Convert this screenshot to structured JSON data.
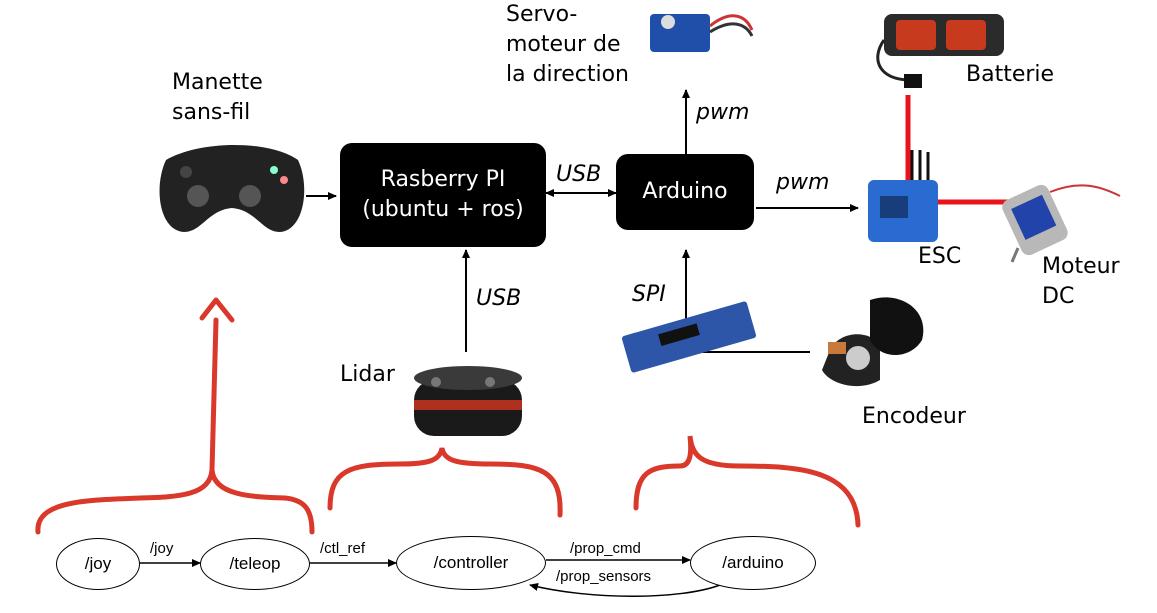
{
  "hardware": {
    "rpi_line1": "Rasberry PI",
    "rpi_line2": "(ubuntu + ros)",
    "arduino": "Arduino",
    "manette": "Manette\nsans-fil",
    "servo": "Servo-\nmoteur de\nla direction",
    "batterie": "Batterie",
    "esc": "ESC",
    "moteur": "Moteur\nDC",
    "lidar": "Lidar",
    "encodeur": "Encodeur",
    "link_usb_rpi_arduino": "USB",
    "link_pwm_servo": "pwm",
    "link_pwm_esc": "pwm",
    "link_usb_lidar": "USB",
    "link_spi": "SPI"
  },
  "ros_graph": {
    "nodes": [
      "/joy",
      "/teleop",
      "/controller",
      "/arduino"
    ],
    "edges": [
      "/joy",
      "/ctl_ref",
      "/prop_cmd",
      "/prop_sensors"
    ]
  },
  "colors": {
    "box": "#000000",
    "annotation_red": "#d9382a",
    "power_red": "#e8141b"
  }
}
